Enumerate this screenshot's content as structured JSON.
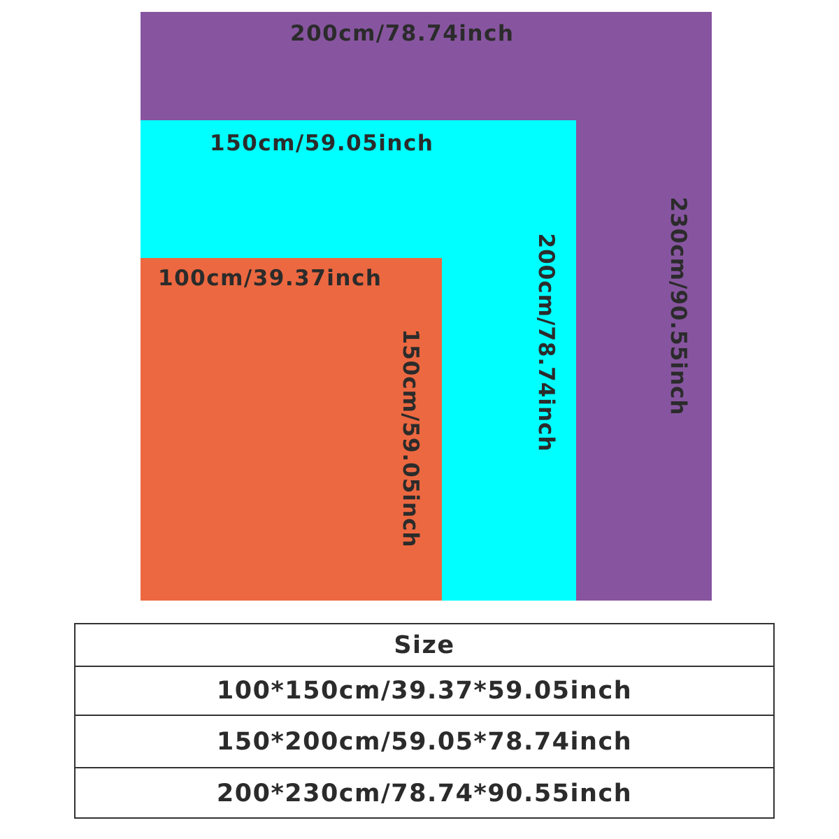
{
  "colors": {
    "large": "#8755A0",
    "medium": "#00FFFF",
    "small": "#EC6840",
    "text": "#2b2b2b"
  },
  "sizes": [
    {
      "width_label": "100cm/39.37inch",
      "length_label": "150cm/59.05inch"
    },
    {
      "width_label": "150cm/59.05inch",
      "length_label": "200cm/78.74inch"
    },
    {
      "width_label": "200cm/78.74inch",
      "length_label": "230cm/90.55inch"
    }
  ],
  "table": {
    "header": "Size",
    "rows": [
      "100*150cm/39.37*59.05inch",
      "150*200cm/59.05*78.74inch",
      "200*230cm/78.74*90.55inch"
    ]
  }
}
